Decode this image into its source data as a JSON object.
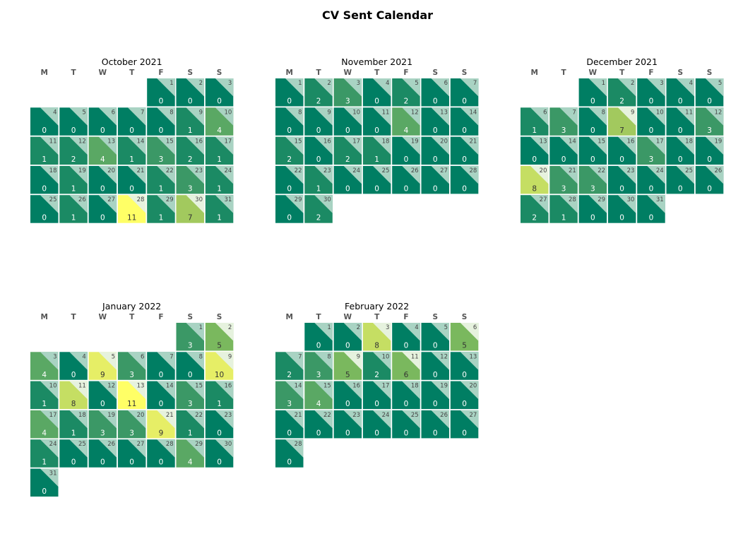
{
  "chart_data": {
    "type": "heatmap",
    "title": "CV Sent Calendar",
    "weekday_labels": [
      "M",
      "T",
      "W",
      "T",
      "F",
      "S",
      "S"
    ],
    "grid": false,
    "colors": {
      "scale": [
        "#007e63",
        "#1b8a64",
        "#3b9866",
        "#5aa864",
        "#7ab85e",
        "#a2c95e",
        "#c5de63",
        "#e6ee66",
        "#ffff66"
      ],
      "corner_light": "#e6f2de",
      "corner_dark": "#a9d3c3",
      "value_text_light": "#ffffff",
      "value_text_dark": "#333333"
    },
    "months": [
      {
        "label": "October 2021",
        "start_weekday": 4,
        "values": [
          0,
          0,
          0,
          0,
          0,
          0,
          0,
          0,
          1,
          4,
          1,
          2,
          4,
          1,
          3,
          2,
          1,
          0,
          1,
          0,
          0,
          1,
          3,
          1,
          0,
          1,
          0,
          11,
          1,
          7,
          1
        ]
      },
      {
        "label": "November 2021",
        "start_weekday": 0,
        "values": [
          0,
          2,
          3,
          0,
          2,
          0,
          0,
          0,
          0,
          0,
          0,
          4,
          0,
          0,
          2,
          0,
          2,
          1,
          0,
          0,
          0,
          0,
          1,
          0,
          0,
          0,
          0,
          0,
          0,
          2
        ]
      },
      {
        "label": "December 2021",
        "start_weekday": 2,
        "values": [
          0,
          2,
          0,
          0,
          0,
          1,
          3,
          0,
          7,
          0,
          0,
          3,
          0,
          0,
          0,
          0,
          3,
          0,
          0,
          8,
          3,
          3,
          0,
          0,
          0,
          0,
          2,
          1,
          0,
          0,
          0
        ]
      },
      {
        "label": "January 2022",
        "start_weekday": 5,
        "values": [
          3,
          5,
          4,
          0,
          9,
          3,
          0,
          0,
          10,
          1,
          8,
          0,
          11,
          0,
          3,
          1,
          4,
          1,
          3,
          3,
          9,
          1,
          0,
          1,
          0,
          0,
          0,
          0,
          4,
          0,
          0
        ]
      },
      {
        "label": "February 2022",
        "start_weekday": 1,
        "values": [
          0,
          0,
          8,
          0,
          0,
          5,
          2,
          3,
          5,
          2,
          6,
          0,
          0,
          3,
          4,
          0,
          0,
          0,
          0,
          0,
          0,
          0,
          0,
          0,
          0,
          0,
          0,
          0
        ]
      }
    ]
  }
}
